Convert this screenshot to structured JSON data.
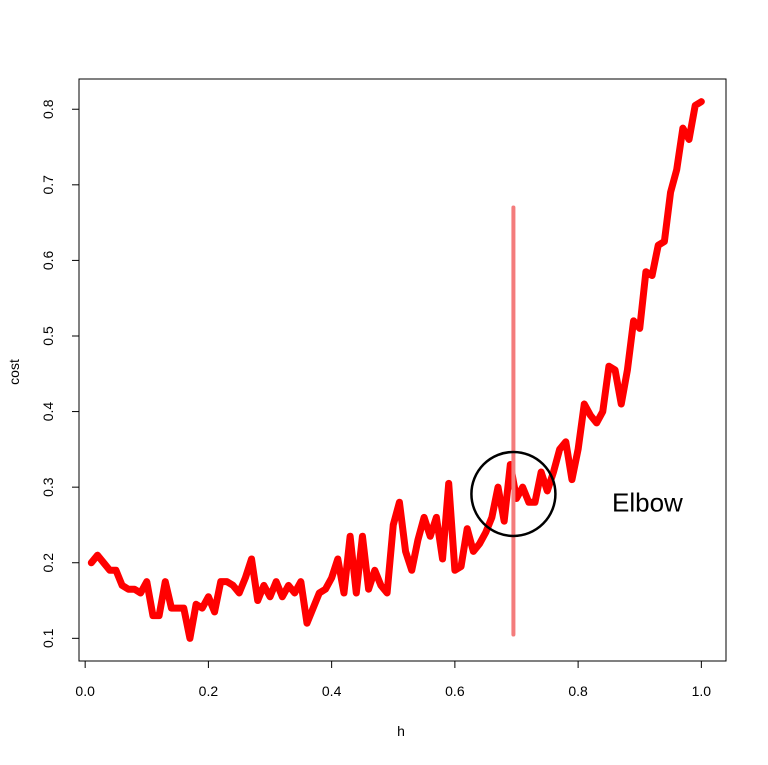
{
  "chart_data": {
    "type": "line",
    "title": "",
    "xlabel": "h",
    "ylabel": "cost",
    "xlim": [
      -0.01,
      1.04
    ],
    "ylim": [
      0.07,
      0.84
    ],
    "x_ticks": [
      0.0,
      0.2,
      0.4,
      0.6,
      0.8,
      1.0
    ],
    "x_tick_labels": [
      "0.0",
      "0.2",
      "0.4",
      "0.6",
      "0.8",
      "1.0"
    ],
    "y_ticks": [
      0.1,
      0.2,
      0.3,
      0.4,
      0.5,
      0.6,
      0.7,
      0.8
    ],
    "y_tick_labels": [
      "0.1",
      "0.2",
      "0.3",
      "0.4",
      "0.5",
      "0.6",
      "0.7",
      "0.8"
    ],
    "series": [
      {
        "name": "cost",
        "color": "#ff0000",
        "x": [
          0.01,
          0.02,
          0.03,
          0.04,
          0.05,
          0.06,
          0.07,
          0.08,
          0.09,
          0.1,
          0.11,
          0.12,
          0.13,
          0.14,
          0.15,
          0.16,
          0.17,
          0.18,
          0.19,
          0.2,
          0.21,
          0.22,
          0.23,
          0.24,
          0.25,
          0.26,
          0.27,
          0.28,
          0.29,
          0.3,
          0.31,
          0.32,
          0.33,
          0.34,
          0.35,
          0.36,
          0.37,
          0.38,
          0.39,
          0.4,
          0.41,
          0.42,
          0.43,
          0.44,
          0.45,
          0.46,
          0.47,
          0.48,
          0.49,
          0.5,
          0.51,
          0.52,
          0.53,
          0.54,
          0.55,
          0.56,
          0.57,
          0.58,
          0.59,
          0.6,
          0.61,
          0.62,
          0.63,
          0.64,
          0.65,
          0.66,
          0.67,
          0.68,
          0.69,
          0.7,
          0.71,
          0.72,
          0.73,
          0.74,
          0.75,
          0.76,
          0.77,
          0.78,
          0.79,
          0.8,
          0.81,
          0.82,
          0.83,
          0.84,
          0.85,
          0.86,
          0.87,
          0.88,
          0.89,
          0.9,
          0.91,
          0.92,
          0.93,
          0.94,
          0.95,
          0.96,
          0.97,
          0.98,
          0.99,
          1.0
        ],
        "values": [
          0.2,
          0.21,
          0.2,
          0.19,
          0.19,
          0.17,
          0.165,
          0.165,
          0.16,
          0.175,
          0.13,
          0.13,
          0.175,
          0.14,
          0.14,
          0.14,
          0.1,
          0.145,
          0.14,
          0.155,
          0.135,
          0.175,
          0.175,
          0.17,
          0.16,
          0.18,
          0.205,
          0.15,
          0.17,
          0.155,
          0.175,
          0.155,
          0.17,
          0.16,
          0.175,
          0.12,
          0.14,
          0.16,
          0.165,
          0.18,
          0.205,
          0.16,
          0.235,
          0.16,
          0.235,
          0.165,
          0.19,
          0.17,
          0.16,
          0.25,
          0.28,
          0.215,
          0.19,
          0.23,
          0.26,
          0.235,
          0.26,
          0.205,
          0.305,
          0.19,
          0.195,
          0.245,
          0.215,
          0.225,
          0.24,
          0.26,
          0.3,
          0.255,
          0.33,
          0.285,
          0.3,
          0.28,
          0.28,
          0.32,
          0.295,
          0.32,
          0.35,
          0.36,
          0.31,
          0.35,
          0.41,
          0.395,
          0.385,
          0.4,
          0.46,
          0.455,
          0.41,
          0.455,
          0.52,
          0.51,
          0.585,
          0.58,
          0.62,
          0.625,
          0.69,
          0.72,
          0.775,
          0.76,
          0.805,
          0.81
        ]
      }
    ],
    "annotations": [
      {
        "type": "vline",
        "x": 0.695,
        "y0": 0.105,
        "y1": 0.67,
        "color": "#f47c7c"
      },
      {
        "type": "circle",
        "x": 0.695,
        "y": 0.291,
        "color": "#000000"
      },
      {
        "type": "text",
        "x": 0.855,
        "y": 0.268,
        "text": "Elbow"
      }
    ]
  }
}
